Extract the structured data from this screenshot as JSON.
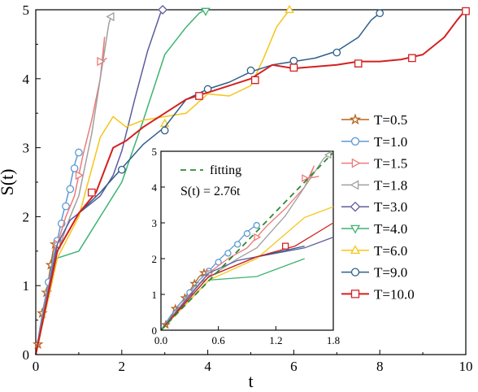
{
  "chart_data": [
    {
      "type": "line",
      "xlabel": "t",
      "ylabel": "S(t)",
      "xlim": [
        0,
        10
      ],
      "ylim": [
        0,
        5
      ],
      "xticks": [
        "0",
        "2",
        "4",
        "6",
        "8",
        "10"
      ],
      "yticks": [
        "0",
        "1",
        "2",
        "3",
        "4",
        "5"
      ],
      "legend_position": "right",
      "series": [
        {
          "name": "T=0.5",
          "color": "#b5651d",
          "marker": "star",
          "points": [
            [
              0.0,
              0.0
            ],
            [
              0.05,
              0.15
            ],
            [
              0.1,
              0.35
            ],
            [
              0.15,
              0.6
            ],
            [
              0.2,
              0.75
            ],
            [
              0.25,
              0.9
            ],
            [
              0.3,
              1.1
            ],
            [
              0.35,
              1.3
            ],
            [
              0.4,
              1.5
            ],
            [
              0.45,
              1.6
            ],
            [
              0.5,
              1.7
            ]
          ],
          "markers": [
            [
              0.05,
              0.15
            ],
            [
              0.15,
              0.6
            ],
            [
              0.25,
              0.9
            ],
            [
              0.35,
              1.3
            ],
            [
              0.45,
              1.6
            ]
          ]
        },
        {
          "name": "T=1.0",
          "color": "#5b9bd5",
          "marker": "circle",
          "points": [
            [
              0.0,
              0.0
            ],
            [
              0.1,
              0.4
            ],
            [
              0.2,
              0.75
            ],
            [
              0.3,
              1.05
            ],
            [
              0.4,
              1.4
            ],
            [
              0.5,
              1.65
            ],
            [
              0.6,
              1.95
            ],
            [
              0.7,
              2.2
            ],
            [
              0.8,
              2.45
            ],
            [
              0.9,
              2.75
            ],
            [
              1.0,
              2.95
            ]
          ],
          "markers": [
            [
              0.3,
              1.05
            ],
            [
              0.5,
              1.65
            ],
            [
              0.6,
              1.9
            ],
            [
              0.7,
              2.15
            ],
            [
              0.8,
              2.4
            ],
            [
              0.9,
              2.7
            ],
            [
              1.0,
              2.93
            ]
          ]
        },
        {
          "name": "T=1.5",
          "color": "#ee7a7a",
          "marker": "triangle-right",
          "points": [
            [
              0.0,
              0.0
            ],
            [
              0.3,
              1.0
            ],
            [
              0.5,
              1.6
            ],
            [
              0.7,
              2.0
            ],
            [
              0.9,
              2.3
            ],
            [
              1.1,
              2.9
            ],
            [
              1.3,
              3.4
            ],
            [
              1.5,
              4.0
            ],
            [
              1.6,
              4.6
            ],
            [
              1.55,
              4.25
            ],
            [
              1.65,
              4.3
            ]
          ],
          "markers": [
            [
              0.5,
              1.6
            ],
            [
              1.0,
              2.6
            ],
            [
              1.5,
              4.25
            ]
          ]
        },
        {
          "name": "T=1.8",
          "color": "#a0a0a0",
          "marker": "triangle-left",
          "points": [
            [
              0.0,
              0.0
            ],
            [
              0.4,
              1.3
            ],
            [
              0.8,
              2.0
            ],
            [
              1.0,
              2.3
            ],
            [
              1.3,
              3.2
            ],
            [
              1.5,
              4.0
            ],
            [
              1.7,
              4.8
            ],
            [
              1.75,
              4.9
            ]
          ],
          "markers": [
            [
              0.5,
              1.6
            ],
            [
              1.75,
              4.9
            ]
          ]
        },
        {
          "name": "T=3.0",
          "color": "#5c5c9e",
          "marker": "diamond",
          "points": [
            [
              0.0,
              0.0
            ],
            [
              0.5,
              1.6
            ],
            [
              0.8,
              1.95
            ],
            [
              1.0,
              2.05
            ],
            [
              1.5,
              2.3
            ],
            [
              1.8,
              2.6
            ],
            [
              2.0,
              2.95
            ],
            [
              2.3,
              3.7
            ],
            [
              2.6,
              4.4
            ],
            [
              2.9,
              4.95
            ],
            [
              3.0,
              5.0
            ]
          ],
          "markers": [
            [
              2.95,
              5.0
            ]
          ]
        },
        {
          "name": "T=4.0",
          "color": "#3cb371",
          "marker": "triangle-down",
          "points": [
            [
              0.0,
              0.0
            ],
            [
              0.5,
              1.4
            ],
            [
              1.0,
              1.5
            ],
            [
              1.5,
              2.0
            ],
            [
              2.0,
              2.5
            ],
            [
              2.5,
              3.4
            ],
            [
              3.0,
              4.35
            ],
            [
              3.5,
              4.75
            ],
            [
              3.8,
              4.95
            ],
            [
              3.95,
              5.0
            ]
          ],
          "markers": [
            [
              3.95,
              4.98
            ]
          ]
        },
        {
          "name": "T=6.0",
          "color": "#f5c518",
          "marker": "triangle-up",
          "points": [
            [
              0.0,
              0.0
            ],
            [
              0.5,
              1.4
            ],
            [
              1.0,
              2.0
            ],
            [
              1.5,
              3.15
            ],
            [
              1.8,
              3.45
            ],
            [
              2.1,
              3.3
            ],
            [
              2.5,
              3.4
            ],
            [
              3.0,
              3.45
            ],
            [
              3.5,
              3.5
            ],
            [
              4.0,
              3.78
            ],
            [
              4.5,
              3.75
            ],
            [
              5.0,
              3.9
            ],
            [
              5.3,
              4.3
            ],
            [
              5.6,
              4.75
            ],
            [
              5.9,
              5.0
            ]
          ],
          "markers": [
            [
              3.0,
              3.35
            ],
            [
              5.9,
              5.0
            ]
          ]
        },
        {
          "name": "T=9.0",
          "color": "#2e5f8a",
          "marker": "circle",
          "points": [
            [
              0.0,
              0.0
            ],
            [
              0.5,
              1.5
            ],
            [
              1.0,
              2.05
            ],
            [
              1.5,
              2.35
            ],
            [
              2.0,
              2.7
            ],
            [
              2.5,
              3.05
            ],
            [
              3.0,
              3.3
            ],
            [
              3.5,
              3.7
            ],
            [
              4.0,
              3.85
            ],
            [
              4.5,
              3.95
            ],
            [
              5.0,
              4.1
            ],
            [
              5.5,
              4.2
            ],
            [
              6.0,
              4.25
            ],
            [
              6.5,
              4.3
            ],
            [
              7.0,
              4.4
            ],
            [
              7.5,
              4.6
            ],
            [
              7.8,
              4.85
            ],
            [
              8.0,
              4.95
            ]
          ],
          "markers": [
            [
              2.0,
              2.68
            ],
            [
              3.0,
              3.25
            ],
            [
              4.0,
              3.85
            ],
            [
              5.0,
              4.12
            ],
            [
              6.0,
              4.26
            ],
            [
              7.0,
              4.38
            ],
            [
              8.0,
              4.95
            ]
          ]
        },
        {
          "name": "T=10.0",
          "color": "#d42020",
          "marker": "square",
          "points": [
            [
              0.0,
              0.0
            ],
            [
              0.5,
              1.5
            ],
            [
              1.0,
              2.05
            ],
            [
              1.4,
              2.35
            ],
            [
              1.8,
              3.0
            ],
            [
              2.1,
              3.1
            ],
            [
              2.5,
              3.3
            ],
            [
              3.0,
              3.5
            ],
            [
              3.5,
              3.7
            ],
            [
              4.0,
              3.8
            ],
            [
              4.5,
              3.9
            ],
            [
              5.0,
              4.0
            ],
            [
              5.5,
              4.2
            ],
            [
              6.0,
              4.15
            ],
            [
              7.0,
              4.2
            ],
            [
              7.5,
              4.25
            ],
            [
              8.0,
              4.25
            ],
            [
              8.5,
              4.28
            ],
            [
              9.0,
              4.35
            ],
            [
              9.5,
              4.6
            ],
            [
              9.8,
              4.85
            ],
            [
              10.0,
              5.0
            ]
          ],
          "markers": [
            [
              1.3,
              2.35
            ],
            [
              3.8,
              3.75
            ],
            [
              5.1,
              3.98
            ],
            [
              6.0,
              4.16
            ],
            [
              7.5,
              4.22
            ],
            [
              8.75,
              4.3
            ],
            [
              10.0,
              4.98
            ]
          ]
        }
      ]
    },
    {
      "type": "line",
      "xlim": [
        0,
        1.8
      ],
      "ylim": [
        0,
        5
      ],
      "xticks": [
        "0.0",
        "0.6",
        "1.2",
        "1.8"
      ],
      "yticks": [
        "0",
        "1",
        "2",
        "3",
        "4",
        "5"
      ],
      "annotations": [
        "fitting",
        "S(t) = 2.76t"
      ],
      "fit": {
        "label": "fitting",
        "slope": 2.76,
        "color": "#2e8b2e"
      }
    }
  ]
}
